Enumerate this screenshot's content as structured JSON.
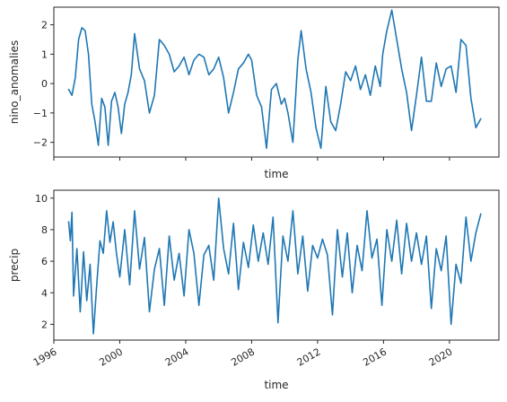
{
  "chart_data": [
    {
      "type": "line",
      "xlabel": "time",
      "ylabel": "nino_anomalies",
      "xlim": [
        1996.0,
        2023.0
      ],
      "ylim": [
        -2.5,
        2.6
      ],
      "xticks": [
        1996,
        2000,
        2004,
        2008,
        2012,
        2016,
        2020
      ],
      "show_xtick_labels": false,
      "yticks": [
        -2,
        -1,
        0,
        1,
        2
      ],
      "ytick_labels": [
        "−2",
        "−1",
        "0",
        "1",
        "2"
      ],
      "color": "#1f77b4",
      "series": [
        {
          "x": [
            1996.9,
            1997.1,
            1997.3,
            1997.5,
            1997.7,
            1997.9,
            1998.1,
            1998.3,
            1998.5,
            1998.7,
            1998.9,
            1999.1,
            1999.3,
            1999.5,
            1999.7,
            1999.9,
            2000.1,
            2000.3,
            2000.5,
            2000.7,
            2000.9,
            2001.2,
            2001.5,
            2001.8,
            2002.1,
            2002.4,
            2002.7,
            2003.0,
            2003.3,
            2003.6,
            2003.9,
            2004.2,
            2004.5,
            2004.8,
            2005.1,
            2005.4,
            2005.7,
            2006.0,
            2006.3,
            2006.6,
            2006.9,
            2007.2,
            2007.5,
            2007.8,
            2008.0,
            2008.3,
            2008.6,
            2008.9,
            2009.2,
            2009.5,
            2009.8,
            2010.0,
            2010.2,
            2010.5,
            2010.8,
            2011.0,
            2011.3,
            2011.6,
            2011.9,
            2012.2,
            2012.5,
            2012.8,
            2013.1,
            2013.4,
            2013.7,
            2014.0,
            2014.3,
            2014.6,
            2014.9,
            2015.2,
            2015.5,
            2015.8,
            2015.95,
            2016.2,
            2016.5,
            2016.8,
            2017.1,
            2017.4,
            2017.7,
            2018.0,
            2018.3,
            2018.6,
            2018.9,
            2019.2,
            2019.5,
            2019.8,
            2020.1,
            2020.4,
            2020.7,
            2021.0,
            2021.3,
            2021.6,
            2021.9
          ],
          "y": [
            -0.2,
            -0.4,
            0.2,
            1.5,
            1.9,
            1.8,
            1.0,
            -0.7,
            -1.3,
            -2.1,
            -0.5,
            -0.8,
            -2.1,
            -0.6,
            -0.3,
            -0.8,
            -1.7,
            -0.7,
            -0.3,
            0.3,
            1.7,
            0.5,
            0.1,
            -1.0,
            -0.4,
            1.5,
            1.3,
            1.0,
            0.4,
            0.6,
            0.9,
            0.3,
            0.8,
            1.0,
            0.9,
            0.3,
            0.5,
            0.9,
            0.2,
            -1.0,
            -0.3,
            0.5,
            0.7,
            1.0,
            0.8,
            -0.4,
            -0.8,
            -2.2,
            -0.2,
            0.0,
            -0.7,
            -0.5,
            -1.0,
            -2.0,
            0.8,
            1.8,
            0.5,
            -0.3,
            -1.5,
            -2.2,
            -0.1,
            -1.3,
            -1.6,
            -0.7,
            0.4,
            0.1,
            0.6,
            -0.2,
            0.3,
            -0.4,
            0.6,
            -0.1,
            1.0,
            1.8,
            2.5,
            1.5,
            0.5,
            -0.3,
            -1.6,
            -0.4,
            0.9,
            -0.6,
            -0.6,
            0.7,
            -0.1,
            0.5,
            0.6,
            -0.3,
            1.5,
            1.3,
            -0.5,
            -1.5,
            -1.2
          ]
        }
      ]
    },
    {
      "type": "line",
      "xlabel": "time",
      "ylabel": "precip",
      "xlim": [
        1996.0,
        2023.0
      ],
      "ylim": [
        1.0,
        10.5
      ],
      "xticks": [
        1996,
        2000,
        2004,
        2008,
        2012,
        2016,
        2020
      ],
      "xtick_labels": [
        "1996",
        "2000",
        "2004",
        "2008",
        "2012",
        "2016",
        "2020"
      ],
      "yticks": [
        2,
        4,
        6,
        8,
        10
      ],
      "ytick_labels": [
        "2",
        "4",
        "6",
        "8",
        "10"
      ],
      "color": "#1f77b4",
      "series": [
        {
          "x": [
            1996.9,
            1997.0,
            1997.1,
            1997.2,
            1997.4,
            1997.6,
            1997.8,
            1998.0,
            1998.2,
            1998.4,
            1998.6,
            1998.8,
            1999.0,
            1999.2,
            1999.4,
            1999.6,
            1999.8,
            2000.0,
            2000.3,
            2000.6,
            2000.9,
            2001.2,
            2001.5,
            2001.8,
            2002.1,
            2002.4,
            2002.7,
            2003.0,
            2003.3,
            2003.6,
            2003.9,
            2004.2,
            2004.5,
            2004.8,
            2005.1,
            2005.4,
            2005.7,
            2006.0,
            2006.3,
            2006.6,
            2006.9,
            2007.2,
            2007.5,
            2007.8,
            2008.1,
            2008.4,
            2008.7,
            2009.0,
            2009.3,
            2009.6,
            2009.9,
            2010.2,
            2010.5,
            2010.8,
            2011.1,
            2011.4,
            2011.7,
            2012.0,
            2012.3,
            2012.6,
            2012.9,
            2013.2,
            2013.5,
            2013.8,
            2014.1,
            2014.4,
            2014.7,
            2015.0,
            2015.3,
            2015.6,
            2015.9,
            2016.2,
            2016.5,
            2016.8,
            2017.1,
            2017.4,
            2017.7,
            2018.0,
            2018.3,
            2018.6,
            2018.9,
            2019.2,
            2019.5,
            2019.8,
            2020.1,
            2020.4,
            2020.7,
            2021.0,
            2021.3,
            2021.6,
            2021.9
          ],
          "y": [
            8.5,
            7.3,
            9.1,
            3.8,
            6.8,
            2.8,
            6.6,
            3.5,
            5.8,
            1.4,
            4.5,
            7.3,
            6.5,
            9.2,
            7.2,
            8.5,
            6.5,
            5.0,
            8.0,
            4.5,
            9.2,
            5.5,
            7.5,
            2.8,
            5.5,
            6.8,
            3.2,
            7.6,
            4.8,
            6.5,
            3.8,
            8.0,
            6.5,
            3.2,
            6.4,
            7.0,
            4.8,
            10.0,
            6.8,
            5.2,
            8.4,
            4.2,
            7.2,
            5.6,
            8.3,
            6.0,
            7.8,
            5.8,
            8.8,
            2.1,
            7.6,
            6.0,
            9.2,
            5.2,
            7.6,
            4.1,
            7.0,
            6.2,
            7.4,
            6.4,
            2.6,
            8.0,
            5.0,
            7.8,
            4.0,
            7.0,
            5.4,
            9.2,
            6.2,
            7.4,
            3.2,
            8.0,
            6.0,
            8.6,
            5.2,
            8.4,
            6.0,
            7.8,
            5.8,
            7.6,
            3.0,
            6.8,
            5.4,
            7.6,
            2.0,
            5.8,
            4.6,
            8.8,
            6.0,
            7.8,
            9.0
          ]
        }
      ]
    }
  ]
}
